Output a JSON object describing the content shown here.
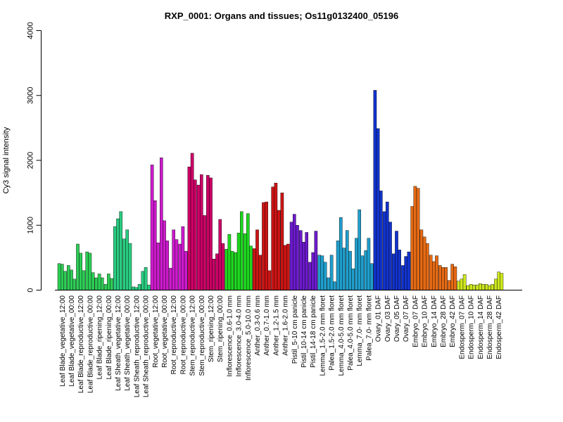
{
  "chart_data": {
    "type": "bar",
    "title": "RXP_0001: Organs and tissues; Os11g0132400_05196",
    "xlabel": "",
    "ylabel": "Cy3 signal intensity",
    "ylim": [
      0,
      4000
    ],
    "yticks": [
      0,
      1000,
      2000,
      3000,
      4000
    ],
    "grid": false,
    "legend": "none",
    "categories": [
      "Leaf Blade_vegetative_12:00",
      "Leaf Blade_vegetative_00:00",
      "Leaf Blade_reproductive_12:00",
      "Leaf Blade_reproductive_00:00",
      "Leaf Blade_ripening_12:00",
      "Leaf Blade_ripening_00:00",
      "Leaf Sheath_vegetative_12:00",
      "Leaf Sheath_vegetative_00:00",
      "Leaf Sheath_reproductive_12:00",
      "Leaf Sheath_reproductive_00:00",
      "Root_vegetative_12:00",
      "Root_vegetative_00:00",
      "Root_reproductive_12:00",
      "Root_reproductive_00:00",
      "Stem_reproductive_12:00",
      "Stem_reproductive_00:00",
      "Stem_ripening_12:00",
      "Stem_ripening_00:00",
      "Inflorescence_0.6-1.0 mm",
      "Inflorescence_3.0-4.0 mm",
      "Inflorescence_5.0-10.0 mm",
      "Anther_0.3-0.6 mm",
      "Anther_0.7-1.0 mm",
      "Anther_1.2-1.5 mm",
      "Anther_1.6-2.0 mm",
      "Pistil_5-10 cm panicle",
      "Pistil_10-14 cm panicle",
      "Pistil_14-18 cm panicle",
      "Lemma_1.5-2.0 mm floret",
      "Palea_1.5-2.0 mm floret",
      "Lemma_4.0-5.0 mm floret",
      "Palea_4.0-5.0 mm floret",
      "Lemma_7.0- mm floret",
      "Palea_7.0- mm floret",
      "Ovary_01 DAF",
      "Ovary_03 DAF",
      "Ovary_05 DAF",
      "Ovary_07 DAF",
      "Embryo_07 DAF",
      "Embryo_10 DAF",
      "Embryo_14 DAF",
      "Embryo_28 DAF",
      "Embryo_42 DAF",
      "Endosperm_07 DAF",
      "Endosperm_10 DAF",
      "Endosperm_14 DAF",
      "Endosperm_28 DAF",
      "Endosperm_42 DAF"
    ],
    "group_colors": [
      "#2dcc55",
      "#2dcc55",
      "#2dcc55",
      "#2dcc55",
      "#2dcc55",
      "#2dcc55",
      "#29cc80",
      "#29cc80",
      "#29cc80",
      "#29cc80",
      "#cc1acc",
      "#cc1acc",
      "#cc1acc",
      "#cc1acc",
      "#cc0066",
      "#cc0066",
      "#cc0066",
      "#cc0066",
      "#1fd61f",
      "#1fd61f",
      "#1fd61f",
      "#cc1414",
      "#cc1414",
      "#cc1414",
      "#cc1414",
      "#6b1acc",
      "#6b1acc",
      "#6b1acc",
      "#1f9ecc",
      "#1f9ecc",
      "#1f9ecc",
      "#1f9ecc",
      "#1f9ecc",
      "#1f9ecc",
      "#1233cc",
      "#1233cc",
      "#1233cc",
      "#1233cc",
      "#e66a14",
      "#e66a14",
      "#e66a14",
      "#e66a14",
      "#e66a14",
      "#cce61f",
      "#cce61f",
      "#cce61f",
      "#cce61f",
      "#cce61f"
    ],
    "values": [
      [
        410,
        400,
        290
      ],
      [
        380,
        310,
        170
      ],
      [
        710,
        570,
        300
      ],
      [
        590,
        570,
        270
      ],
      [
        190,
        250,
        190
      ],
      [
        90,
        250,
        180
      ],
      [
        980,
        1100,
        1210
      ],
      [
        790,
        930,
        720
      ],
      [
        50,
        40,
        90
      ],
      [
        290,
        350,
        80
      ],
      [
        1930,
        1380,
        730
      ],
      [
        2040,
        1070,
        760
      ],
      [
        340,
        930,
        780
      ],
      [
        710,
        980,
        600
      ],
      [
        1900,
        2110,
        1700
      ],
      [
        1620,
        1780,
        1150
      ],
      [
        1770,
        1730,
        480
      ],
      [
        560,
        1090,
        720
      ],
      [
        630,
        860,
        600
      ],
      [
        580,
        880,
        1210
      ],
      [
        870,
        1180,
        680
      ],
      [
        640,
        930,
        540
      ],
      [
        1350,
        1360,
        300
      ],
      [
        1590,
        1650,
        1230
      ],
      [
        1500,
        690,
        710
      ],
      [
        1050,
        1170,
        1000
      ],
      [
        920,
        740,
        890
      ],
      [
        430,
        580,
        910
      ],
      [
        540,
        530,
        430
      ],
      [
        190,
        540,
        130
      ],
      [
        760,
        1120,
        650
      ],
      [
        920,
        600,
        330
      ],
      [
        800,
        1240,
        530
      ],
      [
        610,
        800,
        410
      ],
      [
        3080,
        2490,
        1530
      ],
      [
        1210,
        1360,
        1050
      ],
      [
        560,
        910,
        620
      ],
      [
        380,
        520,
        590
      ],
      [
        1290,
        1600,
        1570
      ],
      [
        930,
        820,
        720
      ],
      [
        540,
        440,
        530
      ],
      [
        380,
        350,
        350
      ],
      [
        150,
        400,
        360
      ],
      [
        140,
        170,
        240
      ],
      [
        70,
        90,
        80
      ],
      [
        80,
        100,
        90
      ],
      [
        90,
        70,
        90
      ],
      [
        170,
        280,
        260
      ]
    ]
  }
}
